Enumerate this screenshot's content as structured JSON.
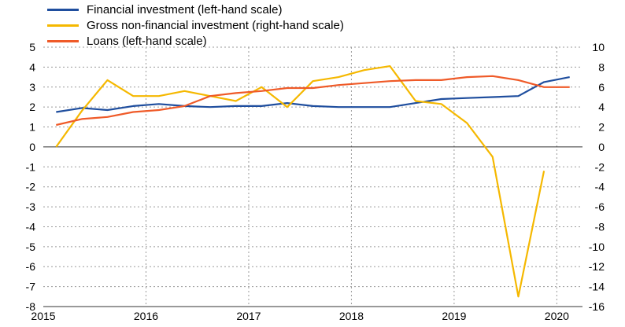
{
  "chart_data": {
    "type": "line",
    "title": "",
    "xlabel": "",
    "ylabel": "",
    "grid": true,
    "legend_position": "top-left",
    "x": [
      2015.125,
      2015.375,
      2015.625,
      2015.875,
      2016.125,
      2016.375,
      2016.625,
      2016.875,
      2017.125,
      2017.375,
      2017.625,
      2017.875,
      2018.125,
      2018.375,
      2018.625,
      2018.875,
      2019.125,
      2019.375,
      2019.625,
      2019.875,
      2020.125
    ],
    "xlim": [
      2015.0,
      2020.25
    ],
    "x_ticks": [
      2015,
      2016,
      2017,
      2018,
      2019,
      2020
    ],
    "x_tick_labels": [
      "2015",
      "2016",
      "2017",
      "2018",
      "2019",
      "2020"
    ],
    "left_axis": {
      "ylim": [
        -8,
        5
      ],
      "ticks": [
        5,
        4,
        3,
        2,
        1,
        0,
        -1,
        -2,
        -3,
        -4,
        -5,
        -6,
        -7,
        -8
      ]
    },
    "right_axis": {
      "ylim": [
        -16,
        10
      ],
      "ticks": [
        10,
        8,
        6,
        4,
        2,
        0,
        -2,
        -4,
        -6,
        -8,
        -10,
        -12,
        -14,
        -16
      ]
    },
    "series": [
      {
        "name": "Financial investment (left-hand scale)",
        "axis": "left",
        "color": "#1f4e9e",
        "values": [
          1.75,
          1.95,
          1.85,
          2.05,
          2.15,
          2.05,
          2.0,
          2.05,
          2.05,
          2.2,
          2.05,
          2.0,
          2.0,
          2.0,
          2.2,
          2.4,
          2.45,
          2.5,
          2.55,
          3.25,
          3.5
        ]
      },
      {
        "name": "Gross non-financial investment (right-hand scale)",
        "axis": "right",
        "color": "#f5b800",
        "values": [
          0.0,
          3.6,
          6.7,
          5.1,
          5.1,
          5.6,
          5.1,
          4.6,
          6.0,
          4.0,
          6.6,
          7.0,
          7.7,
          8.1,
          4.6,
          4.3,
          2.4,
          -1.0,
          -15.0,
          -2.4,
          null
        ]
      },
      {
        "name": "Loans (left-hand scale)",
        "axis": "left",
        "color": "#ef5a28",
        "values": [
          1.1,
          1.4,
          1.5,
          1.75,
          1.85,
          2.05,
          2.55,
          2.7,
          2.8,
          2.95,
          2.95,
          3.1,
          3.2,
          3.3,
          3.35,
          3.35,
          3.5,
          3.55,
          3.35,
          3.0,
          3.0
        ]
      }
    ]
  }
}
